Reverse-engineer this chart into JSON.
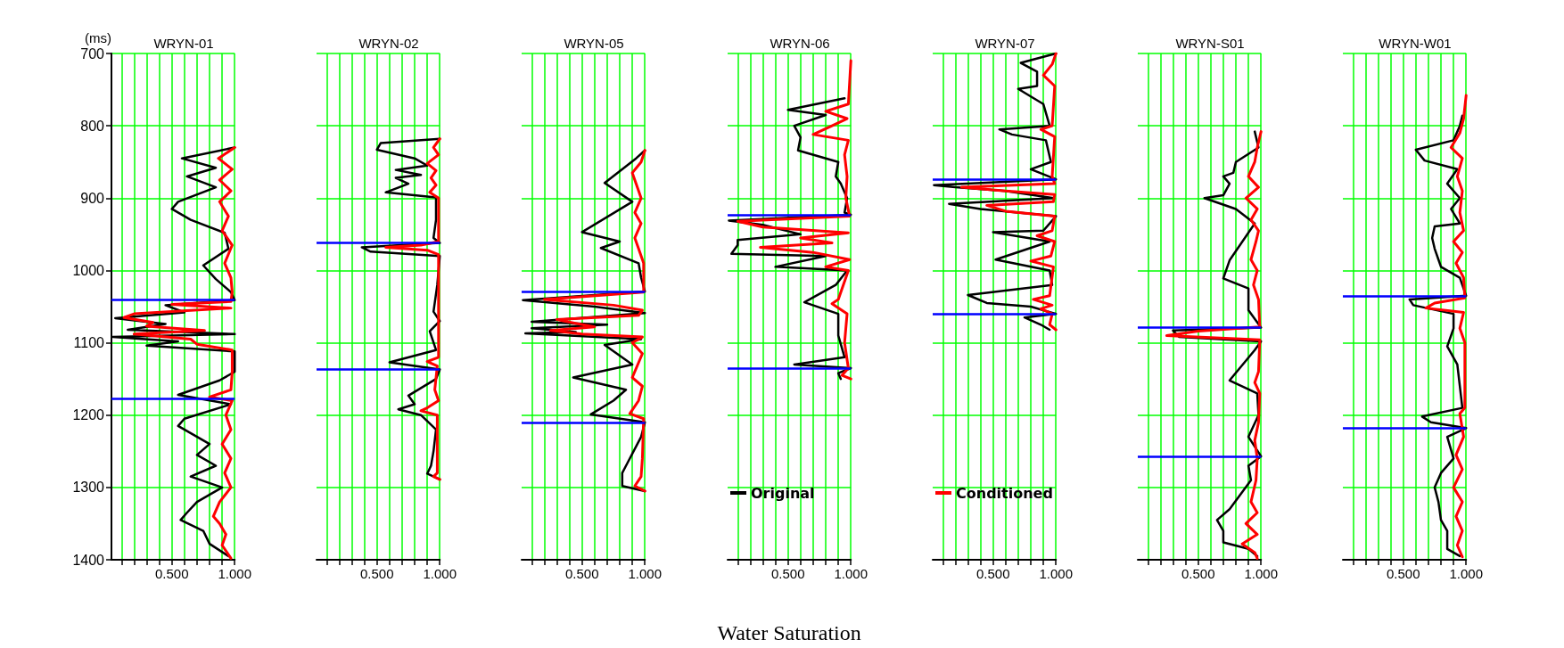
{
  "chart_data": [
    {
      "type": "line",
      "title": "WRYN-01",
      "ylabel": "(ms)",
      "xlim": [
        0.02,
        1
      ],
      "xticks": [
        {
          "value": 0.1,
          "label": null
        },
        {
          "value": 0.2,
          "label": null
        },
        {
          "value": 0.3,
          "label": null
        },
        {
          "value": 0.4,
          "label": null
        },
        {
          "value": 0.5,
          "label": "0.500"
        },
        {
          "value": 0.6,
          "label": null
        },
        {
          "value": 0.7,
          "label": null
        },
        {
          "value": 0.8,
          "label": null
        },
        {
          "value": 0.9,
          "label": null
        },
        {
          "value": 1,
          "label": "1.000"
        }
      ],
      "ylim": [
        1400,
        700
      ],
      "yticks": [
        700,
        800,
        900,
        1000,
        1100,
        1200,
        1300,
        1400
      ],
      "grid": true,
      "marker": "none",
      "line_style": "solid",
      "ref_lines": [
        {
          "axis": "y",
          "value": 1041,
          "color": "#0000ff"
        },
        {
          "axis": "y",
          "value": 1177,
          "color": "#0000ff"
        }
      ],
      "series": [
        {
          "color": "#000000",
          "x": [
            1.0,
            0.58,
            0.85,
            0.62,
            0.85,
            0.55,
            0.5,
            0.65,
            0.92,
            0.95,
            0.75,
            0.85,
            0.97,
            1.0,
            0.45,
            0.6,
            0.05,
            0.45,
            0.15,
            1.0,
            0.03,
            0.55,
            0.3,
            1.0,
            1.0,
            0.88,
            0.55,
            0.97,
            0.6,
            0.55,
            0.8,
            0.7,
            0.85,
            0.65,
            0.9,
            0.7,
            0.62,
            0.57,
            0.75,
            0.8,
            0.95
          ],
          "values": [
            830,
            845,
            858,
            870,
            885,
            905,
            915,
            930,
            948,
            970,
            993,
            1012,
            1030,
            1041,
            1048,
            1058,
            1066,
            1074,
            1082,
            1088,
            1092,
            1098,
            1104,
            1112,
            1140,
            1152,
            1172,
            1185,
            1205,
            1215,
            1240,
            1255,
            1270,
            1285,
            1300,
            1320,
            1335,
            1345,
            1360,
            1378,
            1395
          ]
        },
        {
          "color": "#ff0000",
          "x": [
            1.0,
            0.87,
            0.98,
            0.88,
            0.97,
            0.88,
            0.95,
            0.9,
            0.98,
            0.92,
            0.97,
            0.98,
            0.97,
            0.5,
            0.97,
            0.2,
            0.12,
            0.35,
            0.3,
            0.76,
            0.2,
            0.65,
            0.7,
            0.98,
            0.98,
            0.97,
            0.8,
            0.98,
            0.93,
            0.97,
            0.9,
            0.97,
            0.92,
            0.97,
            0.88,
            0.83,
            0.88,
            0.93,
            0.9,
            0.97
          ],
          "values": [
            830,
            845,
            860,
            875,
            890,
            905,
            925,
            945,
            965,
            990,
            1010,
            1030,
            1043,
            1047,
            1052,
            1060,
            1065,
            1072,
            1077,
            1083,
            1088,
            1095,
            1102,
            1110,
            1140,
            1165,
            1175,
            1180,
            1200,
            1220,
            1240,
            1260,
            1280,
            1300,
            1320,
            1340,
            1350,
            1365,
            1380,
            1398
          ]
        }
      ]
    },
    {
      "type": "line",
      "title": "WRYN-02",
      "tick_labels": "x",
      "xlim": [
        0.02,
        1
      ],
      "xticks": [
        {
          "value": 0.1,
          "label": null
        },
        {
          "value": 0.2,
          "label": null
        },
        {
          "value": 0.3,
          "label": null
        },
        {
          "value": 0.4,
          "label": null
        },
        {
          "value": 0.5,
          "label": "0.500"
        },
        {
          "value": 0.6,
          "label": null
        },
        {
          "value": 0.7,
          "label": null
        },
        {
          "value": 0.8,
          "label": null
        },
        {
          "value": 0.9,
          "label": null
        },
        {
          "value": 1,
          "label": "1.000"
        }
      ],
      "ylim": [
        1400,
        700
      ],
      "yticks": [
        700,
        800,
        900,
        1000,
        1100,
        1200,
        1300,
        1400
      ],
      "grid": true,
      "marker": "none",
      "line_style": "solid",
      "ref_lines": [
        {
          "axis": "y",
          "value": 962,
          "color": "#0000ff"
        },
        {
          "axis": "y",
          "value": 1137,
          "color": "#0000ff"
        }
      ],
      "series": [
        {
          "color": "#000000",
          "x": [
            1.0,
            0.53,
            0.5,
            0.8,
            0.9,
            0.65,
            0.85,
            0.65,
            0.75,
            0.57,
            0.97,
            0.97,
            0.95,
            1.0,
            0.38,
            0.45,
            1.0,
            0.98,
            0.95,
            1.0,
            0.92,
            0.97,
            0.6,
            1.0,
            0.97,
            0.75,
            0.8,
            0.67,
            0.85,
            0.97,
            0.95,
            0.93,
            0.9,
            1.0
          ],
          "values": [
            818,
            824,
            833,
            845,
            855,
            861,
            868,
            872,
            880,
            892,
            899,
            930,
            955,
            962,
            968,
            974,
            980,
            1020,
            1057,
            1070,
            1084,
            1110,
            1127,
            1137,
            1150,
            1173,
            1185,
            1192,
            1200,
            1220,
            1250,
            1270,
            1281,
            1289
          ]
        },
        {
          "color": "#ff0000",
          "x": [
            1.0,
            0.95,
            0.99,
            0.9,
            0.97,
            0.93,
            0.97,
            0.92,
            0.99,
            0.99,
            0.85,
            0.57,
            0.9,
            0.99,
            0.99,
            0.9,
            0.98,
            0.96,
            0.99,
            0.9,
            0.85,
            0.98,
            0.98,
            0.95,
            1.0
          ],
          "values": [
            818,
            830,
            840,
            852,
            862,
            872,
            882,
            892,
            900,
            960,
            965,
            968,
            972,
            978,
            1120,
            1126,
            1132,
            1165,
            1180,
            1190,
            1194,
            1200,
            1280,
            1285,
            1289
          ]
        }
      ]
    },
    {
      "type": "line",
      "title": "WRYN-05",
      "tick_labels": "x",
      "xlim": [
        0.02,
        1
      ],
      "xticks": [
        {
          "value": 0.1,
          "label": null
        },
        {
          "value": 0.2,
          "label": null
        },
        {
          "value": 0.3,
          "label": null
        },
        {
          "value": 0.4,
          "label": null
        },
        {
          "value": 0.5,
          "label": "0.500"
        },
        {
          "value": 0.6,
          "label": null
        },
        {
          "value": 0.7,
          "label": null
        },
        {
          "value": 0.8,
          "label": null
        },
        {
          "value": 0.9,
          "label": null
        },
        {
          "value": 1,
          "label": "1.000"
        }
      ],
      "ylim": [
        1400,
        700
      ],
      "yticks": [
        700,
        800,
        900,
        1000,
        1100,
        1200,
        1300,
        1400
      ],
      "grid": true,
      "marker": "none",
      "line_style": "solid",
      "ref_lines": [
        {
          "axis": "y",
          "value": 1029,
          "color": "#0000ff"
        },
        {
          "axis": "y",
          "value": 1210,
          "color": "#0000ff"
        }
      ],
      "series": [
        {
          "color": "#000000",
          "x": [
            1.0,
            0.93,
            0.68,
            0.9,
            0.5,
            0.8,
            0.65,
            0.95,
            0.97,
            1.0,
            0.03,
            0.6,
            1.0,
            0.1,
            0.7,
            0.1,
            0.45,
            0.05,
            0.97,
            0.68,
            0.9,
            0.43,
            0.85,
            0.75,
            0.57,
            1.0,
            0.97,
            0.85,
            0.82,
            0.82,
            1.0
          ],
          "values": [
            834,
            845,
            879,
            905,
            947,
            960,
            969,
            990,
            1010,
            1029,
            1041,
            1050,
            1059,
            1071,
            1075,
            1080,
            1085,
            1087,
            1095,
            1103,
            1130,
            1148,
            1165,
            1180,
            1199,
            1210,
            1230,
            1270,
            1280,
            1298,
            1305
          ]
        },
        {
          "color": "#ff0000",
          "x": [
            1.0,
            0.97,
            0.9,
            0.93,
            0.97,
            0.92,
            0.97,
            0.92,
            0.95,
            0.99,
            0.99,
            0.2,
            0.75,
            0.98,
            0.95,
            0.3,
            0.45,
            0.6,
            0.25,
            0.5,
            0.98,
            0.9,
            0.98,
            0.9,
            0.98,
            0.95,
            0.88,
            0.99,
            0.98,
            0.97,
            0.92,
            1.0
          ],
          "values": [
            834,
            850,
            865,
            880,
            900,
            920,
            935,
            955,
            970,
            990,
            1030,
            1040,
            1048,
            1055,
            1062,
            1068,
            1073,
            1078,
            1083,
            1088,
            1092,
            1100,
            1115,
            1148,
            1160,
            1180,
            1198,
            1205,
            1260,
            1285,
            1298,
            1305
          ]
        }
      ]
    },
    {
      "type": "line",
      "title": "WRYN-06",
      "xlabel": "Water Saturation",
      "tick_labels": "x",
      "legend": "bottom left",
      "xlim": [
        0.02,
        1
      ],
      "xticks": [
        {
          "value": 0.1,
          "label": null
        },
        {
          "value": 0.2,
          "label": null
        },
        {
          "value": 0.3,
          "label": null
        },
        {
          "value": 0.4,
          "label": null
        },
        {
          "value": 0.5,
          "label": "0.500"
        },
        {
          "value": 0.6,
          "label": null
        },
        {
          "value": 0.7,
          "label": null
        },
        {
          "value": 0.8,
          "label": null
        },
        {
          "value": 0.9,
          "label": null
        },
        {
          "value": 1,
          "label": "1.000"
        }
      ],
      "ylim": [
        1400,
        700
      ],
      "yticks": [
        700,
        800,
        900,
        1000,
        1100,
        1200,
        1300,
        1400
      ],
      "grid": true,
      "marker": "none",
      "line_style": "solid",
      "ref_lines": [
        {
          "axis": "y",
          "value": 923,
          "color": "#0000ff"
        },
        {
          "axis": "y",
          "value": 1135,
          "color": "#0000ff"
        }
      ],
      "series": [
        {
          "name": "Original",
          "color": "#000000",
          "x": [
            0.95,
            0.5,
            0.8,
            0.55,
            0.6,
            0.58,
            0.9,
            0.88,
            0.92,
            0.97,
            0.95,
            1.0,
            0.03,
            0.3,
            0.6,
            0.1,
            0.1,
            0.05,
            0.8,
            0.4,
            0.97,
            0.88,
            0.63,
            0.9,
            0.9,
            0.95,
            0.55,
            1.0,
            0.9,
            0.92
          ],
          "values": [
            762,
            778,
            785,
            800,
            816,
            834,
            850,
            870,
            880,
            900,
            920,
            923,
            931,
            937,
            950,
            958,
            965,
            977,
            980,
            995,
            1000,
            1020,
            1044,
            1060,
            1090,
            1120,
            1130,
            1135,
            1142,
            1150
          ]
        },
        {
          "color": "#ff0000",
          "x": [
            1.0,
            0.98,
            0.8,
            0.97,
            0.85,
            0.7,
            0.98,
            0.95,
            0.97,
            0.96,
            0.99,
            0.1,
            0.3,
            0.98,
            0.6,
            0.85,
            0.28,
            0.7,
            0.99,
            0.8,
            0.98,
            0.9,
            0.85,
            0.97,
            0.95,
            0.98,
            0.93,
            1.0
          ],
          "values": [
            710,
            770,
            780,
            790,
            800,
            812,
            820,
            840,
            870,
            900,
            925,
            932,
            940,
            948,
            955,
            962,
            968,
            975,
            985,
            995,
            1000,
            1040,
            1046,
            1060,
            1100,
            1135,
            1145,
            1150
          ]
        }
      ]
    },
    {
      "type": "line",
      "title": "WRYN-07",
      "tick_labels": "x",
      "legend": "bottom left",
      "xlim": [
        0.02,
        1
      ],
      "xticks": [
        {
          "value": 0.1,
          "label": null
        },
        {
          "value": 0.2,
          "label": null
        },
        {
          "value": 0.3,
          "label": null
        },
        {
          "value": 0.4,
          "label": null
        },
        {
          "value": 0.5,
          "label": "0.500"
        },
        {
          "value": 0.6,
          "label": null
        },
        {
          "value": 0.7,
          "label": null
        },
        {
          "value": 0.8,
          "label": null
        },
        {
          "value": 0.9,
          "label": null
        },
        {
          "value": 1,
          "label": "1.000"
        }
      ],
      "ylim": [
        1400,
        700
      ],
      "yticks": [
        700,
        800,
        900,
        1000,
        1100,
        1200,
        1300,
        1400
      ],
      "grid": true,
      "marker": "none",
      "line_style": "solid",
      "ref_lines": [
        {
          "axis": "y",
          "value": 874,
          "color": "#0000ff"
        },
        {
          "axis": "y",
          "value": 1060,
          "color": "#0000ff"
        }
      ],
      "series": [
        {
          "color": "#000000",
          "x": [
            1.0,
            0.72,
            0.85,
            0.85,
            0.7,
            0.9,
            0.95,
            0.55,
            0.65,
            0.92,
            0.96,
            0.8,
            1.0,
            0.03,
            0.2,
            0.6,
            0.98,
            0.15,
            0.4,
            0.7,
            1.0,
            0.9,
            0.5,
            0.95,
            0.52,
            0.95,
            0.97,
            0.3,
            0.45,
            0.8,
            1.0,
            0.75,
            0.88,
            0.95
          ],
          "values": [
            700,
            713,
            725,
            745,
            749,
            770,
            800,
            805,
            812,
            820,
            850,
            860,
            874,
            882,
            885,
            890,
            900,
            908,
            915,
            920,
            925,
            945,
            947,
            960,
            985,
            1000,
            1020,
            1034,
            1045,
            1050,
            1060,
            1065,
            1075,
            1082
          ]
        },
        {
          "name": "Conditioned",
          "color": "#ff0000",
          "x": [
            1.0,
            0.97,
            0.9,
            0.99,
            0.97,
            0.88,
            0.99,
            0.97,
            0.99,
            0.25,
            0.6,
            0.99,
            0.98,
            0.45,
            0.6,
            0.99,
            0.97,
            0.85,
            0.99,
            0.96,
            0.8,
            0.98,
            0.95,
            0.82,
            0.97,
            0.88,
            0.97,
            0.95,
            1.0
          ],
          "values": [
            700,
            715,
            730,
            745,
            800,
            805,
            815,
            870,
            880,
            885,
            890,
            895,
            905,
            910,
            918,
            925,
            945,
            952,
            960,
            980,
            987,
            995,
            1035,
            1040,
            1048,
            1053,
            1060,
            1075,
            1082
          ]
        }
      ]
    },
    {
      "type": "line",
      "title": "WRYN-S01",
      "tick_labels": "x",
      "xlim": [
        0.02,
        1
      ],
      "xticks": [
        {
          "value": 0.1,
          "label": null
        },
        {
          "value": 0.2,
          "label": null
        },
        {
          "value": 0.3,
          "label": null
        },
        {
          "value": 0.4,
          "label": null
        },
        {
          "value": 0.5,
          "label": "0.500"
        },
        {
          "value": 0.6,
          "label": null
        },
        {
          "value": 0.7,
          "label": null
        },
        {
          "value": 0.8,
          "label": null
        },
        {
          "value": 0.9,
          "label": null
        },
        {
          "value": 1,
          "label": "1.000"
        }
      ],
      "ylim": [
        1400,
        700
      ],
      "yticks": [
        700,
        800,
        900,
        1000,
        1100,
        1200,
        1300,
        1400
      ],
      "grid": true,
      "marker": "none",
      "line_style": "solid",
      "ref_lines": [
        {
          "axis": "y",
          "value": 1079,
          "color": "#0000ff"
        },
        {
          "axis": "y",
          "value": 1257,
          "color": "#0000ff"
        }
      ],
      "series": [
        {
          "color": "#000000",
          "x": [
            0.95,
            0.98,
            0.8,
            0.78,
            0.7,
            0.75,
            0.7,
            0.55,
            0.8,
            0.95,
            0.75,
            0.7,
            0.9,
            0.9,
            1.0,
            0.3,
            0.35,
            1.0,
            0.95,
            0.75,
            0.97,
            0.98,
            0.9,
            1.0,
            0.9,
            0.92,
            0.75,
            0.65,
            0.7,
            0.7,
            0.9,
            0.97
          ],
          "values": [
            808,
            830,
            850,
            865,
            870,
            880,
            896,
            900,
            915,
            935,
            986,
            1011,
            1025,
            1055,
            1079,
            1083,
            1092,
            1098,
            1110,
            1152,
            1170,
            1200,
            1230,
            1257,
            1270,
            1290,
            1330,
            1345,
            1360,
            1376,
            1385,
            1395
          ]
        },
        {
          "color": "#ff0000",
          "x": [
            1.0,
            0.97,
            0.95,
            0.9,
            0.98,
            0.88,
            0.97,
            0.92,
            0.98,
            0.96,
            0.92,
            0.97,
            0.94,
            0.98,
            0.99,
            0.5,
            0.25,
            0.99,
            0.98,
            0.95,
            0.99,
            0.98,
            0.95,
            0.97,
            0.96,
            0.92,
            0.97,
            0.88,
            0.97,
            0.85,
            0.95,
            0.97
          ],
          "values": [
            808,
            830,
            850,
            870,
            885,
            900,
            915,
            930,
            945,
            960,
            985,
            1000,
            1020,
            1040,
            1078,
            1084,
            1090,
            1096,
            1140,
            1155,
            1170,
            1210,
            1235,
            1260,
            1290,
            1320,
            1335,
            1350,
            1365,
            1378,
            1390,
            1398
          ]
        }
      ]
    },
    {
      "type": "line",
      "title": "WRYN-W01",
      "tick_labels": "x",
      "xlim": [
        0.02,
        1
      ],
      "xticks": [
        {
          "value": 0.1,
          "label": null
        },
        {
          "value": 0.2,
          "label": null
        },
        {
          "value": 0.3,
          "label": null
        },
        {
          "value": 0.4,
          "label": null
        },
        {
          "value": 0.5,
          "label": "0.500"
        },
        {
          "value": 0.6,
          "label": null
        },
        {
          "value": 0.7,
          "label": null
        },
        {
          "value": 0.8,
          "label": null
        },
        {
          "value": 0.9,
          "label": null
        },
        {
          "value": 1,
          "label": "1.000"
        }
      ],
      "ylim": [
        1400,
        700
      ],
      "yticks": [
        700,
        800,
        900,
        1000,
        1100,
        1200,
        1300,
        1400
      ],
      "grid": true,
      "marker": "none",
      "line_style": "solid",
      "ref_lines": [
        {
          "axis": "y",
          "value": 1035,
          "color": "#0000ff"
        },
        {
          "axis": "y",
          "value": 1218,
          "color": "#0000ff"
        }
      ],
      "series": [
        {
          "color": "#000000",
          "x": [
            0.97,
            0.95,
            0.9,
            0.6,
            0.67,
            0.93,
            0.85,
            0.95,
            0.88,
            0.95,
            0.75,
            0.73,
            0.75,
            0.78,
            0.8,
            0.95,
            1.0,
            0.55,
            0.58,
            0.9,
            0.9,
            0.85,
            0.93,
            0.97,
            0.65,
            0.72,
            1.0,
            0.85,
            0.9,
            0.8,
            0.75,
            0.78,
            0.8,
            0.85,
            0.85,
            0.95
          ],
          "values": [
            786,
            800,
            820,
            833,
            848,
            860,
            880,
            900,
            915,
            935,
            939,
            955,
            970,
            985,
            995,
            1010,
            1035,
            1040,
            1048,
            1060,
            1080,
            1105,
            1130,
            1190,
            1202,
            1210,
            1218,
            1230,
            1260,
            1280,
            1300,
            1320,
            1345,
            1360,
            1385,
            1395
          ]
        },
        {
          "color": "#ff0000",
          "x": [
            1.0,
            0.98,
            0.95,
            0.88,
            0.97,
            0.93,
            0.97,
            0.95,
            0.98,
            0.9,
            0.97,
            0.92,
            0.98,
            0.99,
            0.75,
            0.68,
            0.98,
            0.95,
            0.99,
            0.99,
            0.95,
            0.98,
            0.92,
            0.97,
            0.9,
            0.97,
            0.92,
            0.97,
            0.93,
            0.97
          ],
          "values": [
            758,
            790,
            810,
            830,
            845,
            870,
            890,
            920,
            945,
            960,
            975,
            990,
            1010,
            1038,
            1045,
            1052,
            1058,
            1080,
            1100,
            1190,
            1198,
            1230,
            1255,
            1275,
            1300,
            1320,
            1340,
            1360,
            1380,
            1396
          ]
        }
      ]
    }
  ]
}
